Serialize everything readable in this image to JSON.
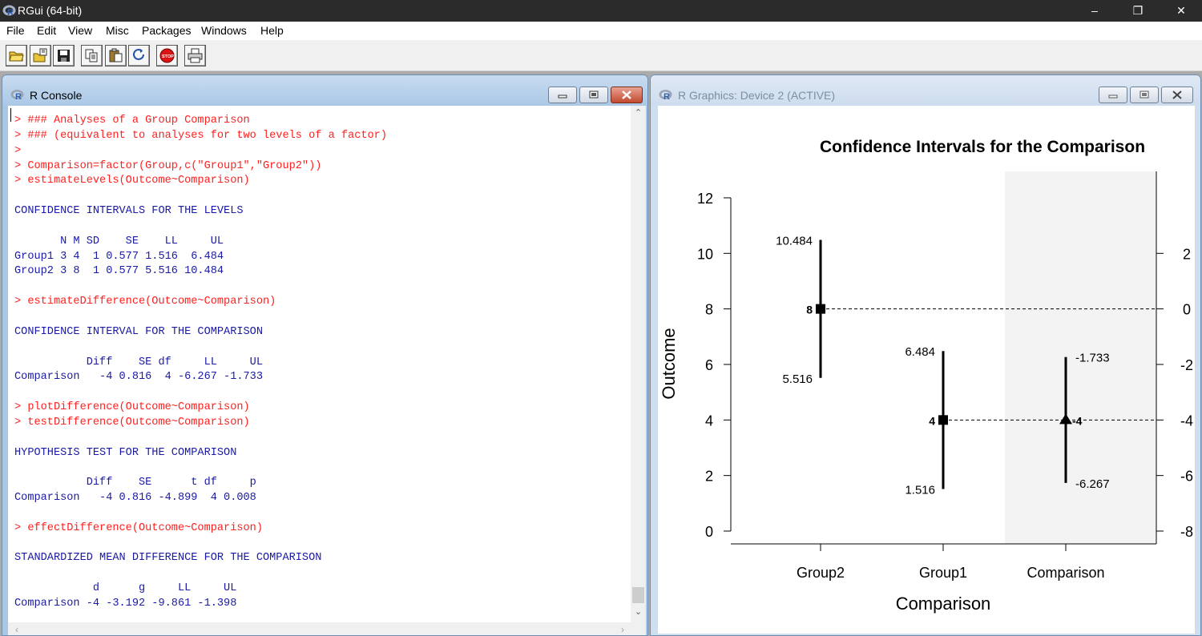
{
  "app": {
    "title": "RGui (64-bit)",
    "window_controls": {
      "minimize": "–",
      "restore": "❐",
      "close": "✕"
    }
  },
  "menu": [
    "File",
    "Edit",
    "View",
    "Misc",
    "Packages",
    "Windows",
    "Help"
  ],
  "toolbar": [
    "open-script-icon",
    "load-workspace-icon",
    "save-workspace-icon",
    "copy-icon",
    "paste-icon",
    "copy-paste-icon",
    "stop-icon",
    "print-icon"
  ],
  "console": {
    "title": "R Console",
    "lines": [
      {
        "type": "in",
        "text": "> ### Analyses of a Group Comparison"
      },
      {
        "type": "in",
        "text": "> ### (equivalent to analyses for two levels of a factor)"
      },
      {
        "type": "in",
        "text": ">"
      },
      {
        "type": "in",
        "text": "> Comparison=factor(Group,c(\"Group1\",\"Group2\"))"
      },
      {
        "type": "in",
        "text": "> estimateLevels(Outcome~Comparison)"
      },
      {
        "type": "out",
        "text": ""
      },
      {
        "type": "out",
        "text": "CONFIDENCE INTERVALS FOR THE LEVELS"
      },
      {
        "type": "out",
        "text": ""
      },
      {
        "type": "out",
        "text": "       N M SD    SE    LL     UL"
      },
      {
        "type": "out",
        "text": "Group1 3 4  1 0.577 1.516  6.484"
      },
      {
        "type": "out",
        "text": "Group2 3 8  1 0.577 5.516 10.484"
      },
      {
        "type": "out",
        "text": ""
      },
      {
        "type": "in",
        "text": "> estimateDifference(Outcome~Comparison)"
      },
      {
        "type": "out",
        "text": ""
      },
      {
        "type": "out",
        "text": "CONFIDENCE INTERVAL FOR THE COMPARISON"
      },
      {
        "type": "out",
        "text": ""
      },
      {
        "type": "out",
        "text": "           Diff    SE df     LL     UL"
      },
      {
        "type": "out",
        "text": "Comparison   -4 0.816  4 -6.267 -1.733"
      },
      {
        "type": "out",
        "text": ""
      },
      {
        "type": "in",
        "text": "> plotDifference(Outcome~Comparison)"
      },
      {
        "type": "in",
        "text": "> testDifference(Outcome~Comparison)"
      },
      {
        "type": "out",
        "text": ""
      },
      {
        "type": "out",
        "text": "HYPOTHESIS TEST FOR THE COMPARISON"
      },
      {
        "type": "out",
        "text": ""
      },
      {
        "type": "out",
        "text": "           Diff    SE      t df     p"
      },
      {
        "type": "out",
        "text": "Comparison   -4 0.816 -4.899  4 0.008"
      },
      {
        "type": "out",
        "text": ""
      },
      {
        "type": "in",
        "text": "> effectDifference(Outcome~Comparison)"
      },
      {
        "type": "out",
        "text": ""
      },
      {
        "type": "out",
        "text": "STANDARDIZED MEAN DIFFERENCE FOR THE COMPARISON"
      },
      {
        "type": "out",
        "text": ""
      },
      {
        "type": "out",
        "text": "            d      g     LL     UL"
      },
      {
        "type": "out",
        "text": "Comparison -4 -3.192 -9.861 -1.398"
      }
    ],
    "colors": {
      "input": "#ff2020",
      "output": "#1a1aa6"
    }
  },
  "graphics": {
    "title": "R Graphics: Device 2 (ACTIVE)"
  },
  "chart_data": {
    "type": "scatter",
    "title": "Confidence Intervals for the Comparison",
    "xlabel": "Comparison",
    "ylabel": "Outcome",
    "categories": [
      "Group2",
      "Group1",
      "Comparison"
    ],
    "left_axis": {
      "ylim": [
        0,
        12
      ],
      "ticks": [
        0,
        2,
        4,
        6,
        8,
        10,
        12
      ]
    },
    "right_axis": {
      "ticks": [
        2,
        0,
        -2,
        -4,
        -6,
        -8
      ]
    },
    "points": [
      {
        "category": "Group2",
        "mean": 8,
        "ll": 5.516,
        "ul": 10.484,
        "mean_label": "8",
        "ll_label": "5.516",
        "ul_label": "10.484",
        "marker": "square"
      },
      {
        "category": "Group1",
        "mean": 4,
        "ll": 1.516,
        "ul": 6.484,
        "mean_label": "4",
        "ll_label": "1.516",
        "ul_label": "6.484",
        "marker": "square"
      },
      {
        "category": "Comparison",
        "mean": -4,
        "ll": -6.267,
        "ul": -1.733,
        "mean_label": "-4",
        "ll_label": "-6.267",
        "ul_label": "-1.733",
        "marker": "triangle",
        "axis": "right"
      }
    ],
    "reference_lines": [
      {
        "left_value": 8,
        "right_value": 0
      },
      {
        "left_value": 4,
        "right_value": -4
      }
    ],
    "grid": false,
    "shaded_region": "Comparison"
  }
}
